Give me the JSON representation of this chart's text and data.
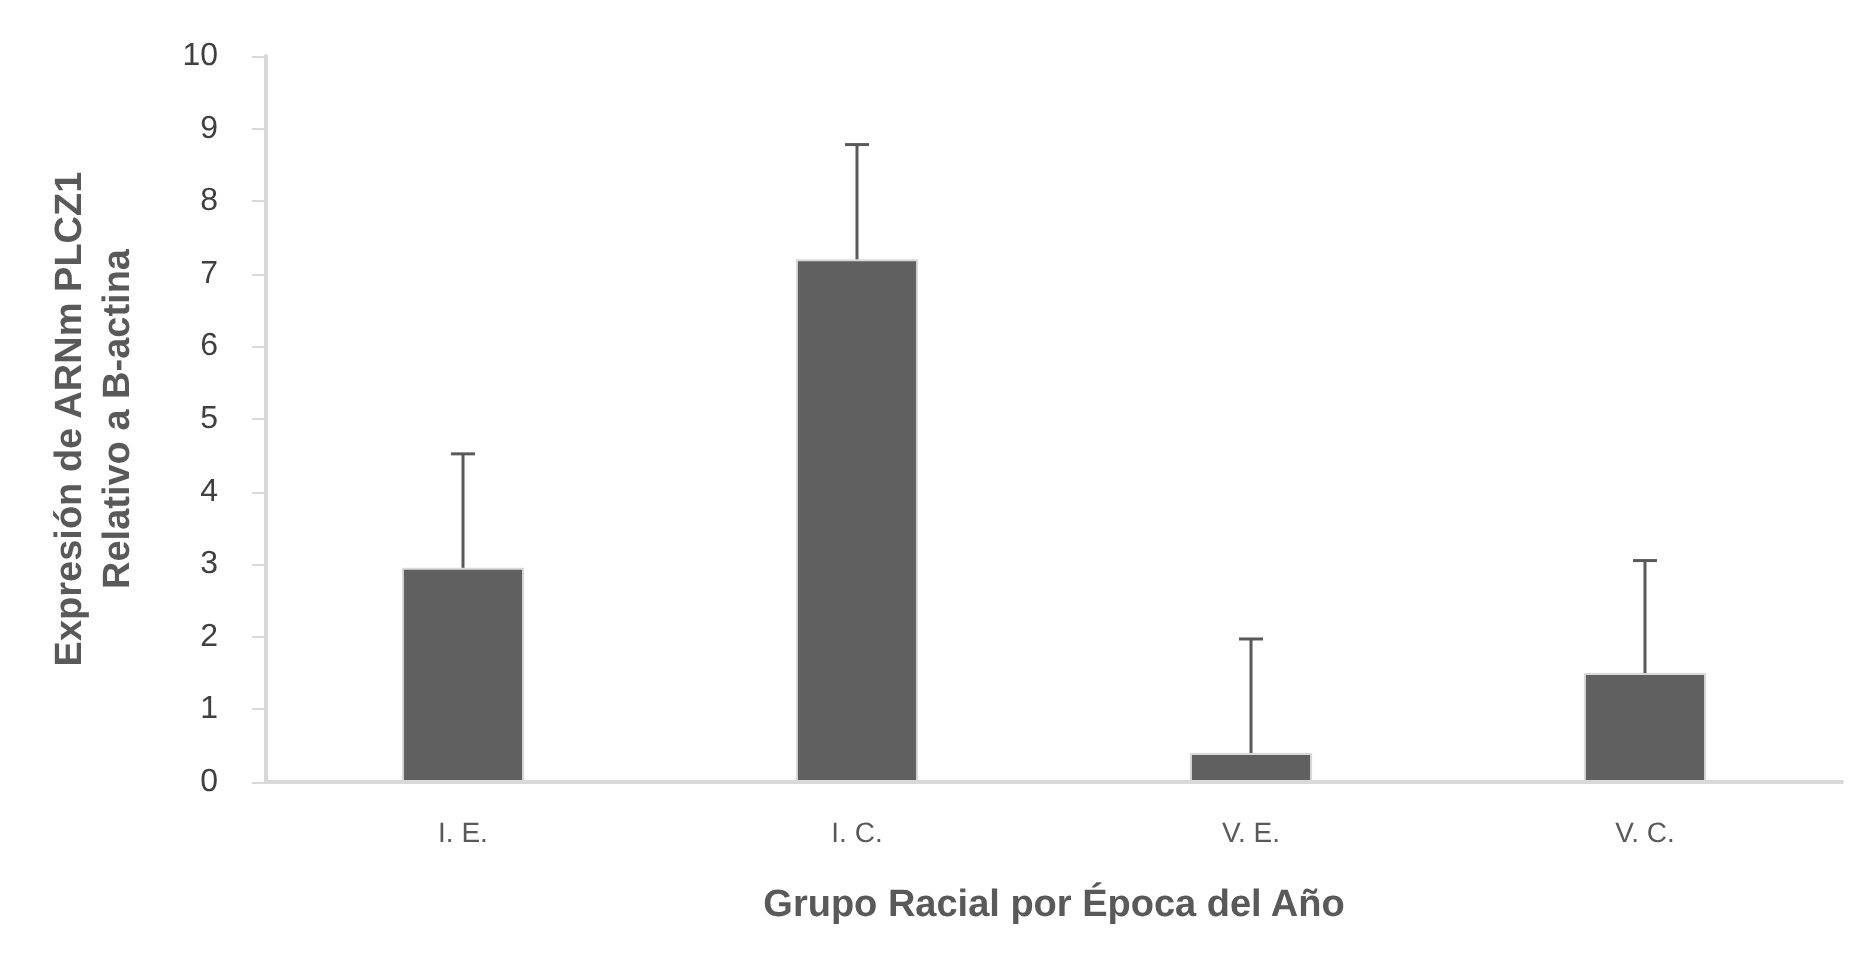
{
  "chart_data": {
    "type": "bar",
    "xlabel": "Grupo Racial por Época del Año",
    "ylabel": "Expresión de ARNm PLCZ1\nRelativo a B-actina",
    "categories": [
      "I. E.",
      "I. C.",
      "V. E.",
      "V. C."
    ],
    "values": [
      2.95,
      7.2,
      0.4,
      1.5
    ],
    "errors": [
      [
        2.95,
        4.52
      ],
      [
        7.2,
        8.78
      ],
      [
        0.4,
        1.97
      ],
      [
        1.5,
        3.05
      ]
    ],
    "color": "#606060",
    "ylim": [
      0,
      10
    ],
    "yticks": [
      0,
      1,
      2,
      3,
      4,
      5,
      6,
      7,
      8,
      9,
      10
    ],
    "grid": false
  }
}
